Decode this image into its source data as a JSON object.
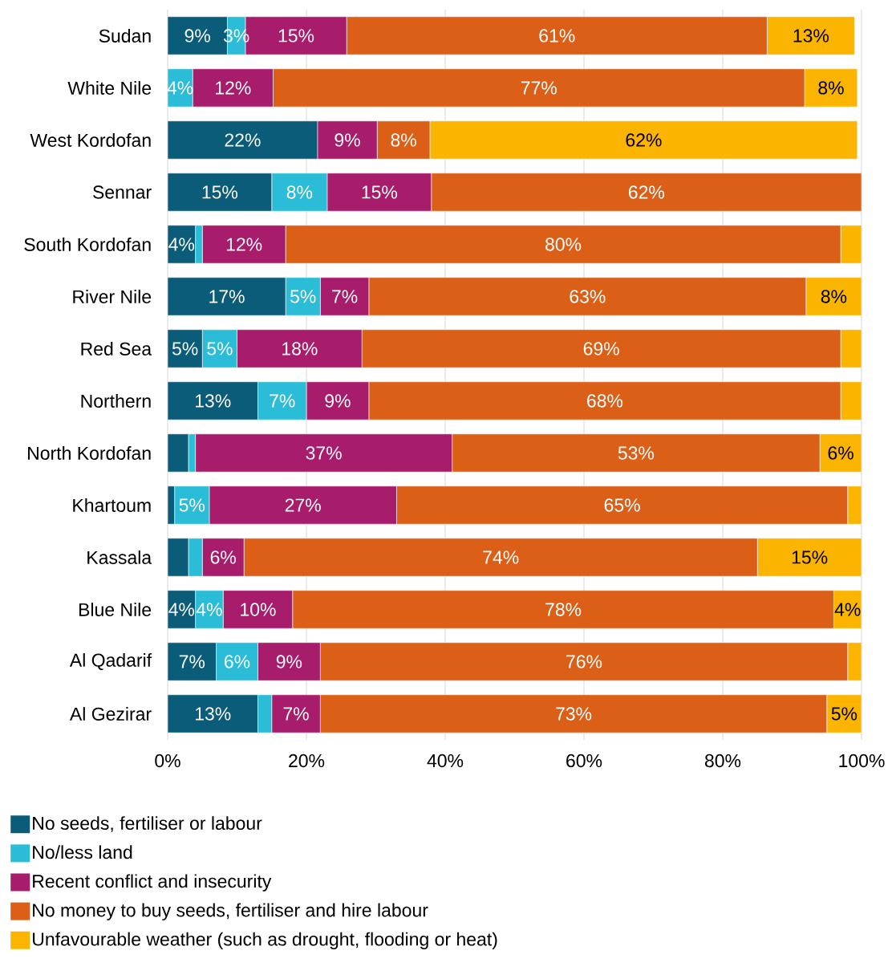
{
  "chart_data": {
    "type": "bar",
    "orientation": "horizontal",
    "stacked": true,
    "categories": [
      "Sudan",
      "White Nile",
      "West Kordofan",
      "Sennar",
      "South Kordofan",
      "River Nile",
      "Red Sea",
      "Northern",
      "North Kordofan",
      "Khartoum",
      "Kassala",
      "Blue Nile",
      "Al Qadarif",
      "Al Gezirar"
    ],
    "series": [
      {
        "name": "No seeds, fertiliser or labour",
        "color": "#0b5c78",
        "values": [
          8.6,
          0,
          21.6,
          15,
          4,
          17,
          5,
          13,
          3,
          1,
          3,
          4,
          7,
          13
        ],
        "value_labels": [
          "9%",
          null,
          "22%",
          "15%",
          "4%",
          "17%",
          "5%",
          "13%",
          null,
          null,
          null,
          "4%",
          "7%",
          "13%"
        ]
      },
      {
        "name": "No/less land",
        "color": "#2bbcd8",
        "values": [
          2.6,
          3.6,
          0,
          8,
          1,
          5,
          5,
          7,
          1,
          5,
          2,
          4,
          6,
          2
        ],
        "value_labels": [
          "3%",
          "4%",
          null,
          "8%",
          null,
          "5%",
          "5%",
          "7%",
          null,
          "5%",
          null,
          "4%",
          "6%",
          null
        ]
      },
      {
        "name": "Recent conflict and insecurity",
        "color": "#a71d6b",
        "values": [
          14.6,
          11.6,
          8.6,
          15,
          12,
          7,
          18,
          9,
          37,
          27,
          6,
          10,
          9,
          7
        ],
        "value_labels": [
          "15%",
          "12%",
          "9%",
          "15%",
          "12%",
          "7%",
          "18%",
          "9%",
          "37%",
          "27%",
          "6%",
          "10%",
          "9%",
          "7%"
        ]
      },
      {
        "name": "No money to buy seeds, fertiliser and hire labour",
        "color": "#dc5f18",
        "values": [
          60.6,
          76.6,
          7.6,
          62,
          80,
          63,
          69,
          68,
          53,
          65,
          74,
          78,
          76,
          73
        ],
        "value_labels": [
          "61%",
          "77%",
          "8%",
          "62%",
          "80%",
          "63%",
          "69%",
          "68%",
          "53%",
          "65%",
          "74%",
          "78%",
          "76%",
          "73%"
        ]
      },
      {
        "name": "Unfavourable weather (such as drought, flooding or heat)",
        "color": "#fbb400",
        "values": [
          12.6,
          7.6,
          61.6,
          0,
          3,
          8,
          3,
          3,
          6,
          2,
          15,
          4,
          2,
          5
        ],
        "value_labels": [
          "13%",
          "8%",
          "62%",
          null,
          null,
          "8%",
          null,
          null,
          "6%",
          null,
          "15%",
          "4%",
          null,
          "5%"
        ]
      }
    ],
    "xlim": [
      0,
      100
    ],
    "xticks": [
      {
        "value": 0,
        "label": "0%"
      },
      {
        "value": 20,
        "label": "20%"
      },
      {
        "value": 40,
        "label": "40%"
      },
      {
        "value": 60,
        "label": "60%"
      },
      {
        "value": 80,
        "label": "80%"
      },
      {
        "value": 100,
        "label": "100%"
      }
    ],
    "grid": "x",
    "legend": "bottom"
  }
}
